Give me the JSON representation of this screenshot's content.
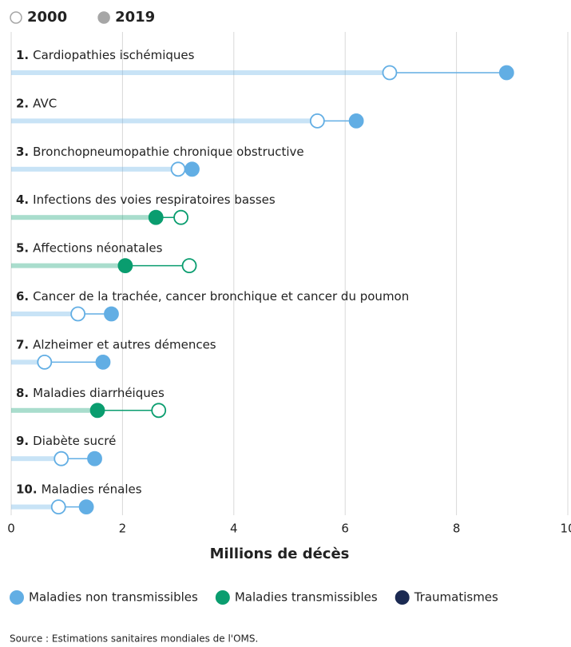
{
  "chart_data": {
    "type": "dumbbell",
    "ranks": [
      "1.",
      "2.",
      "3.",
      "4.",
      "5.",
      "6.",
      "7.",
      "8.",
      "9.",
      "10."
    ],
    "categories": [
      "Cardiopathies ischémiques",
      "AVC",
      "Bronchopneumopathie chronique obstructive",
      "Infections des voies respiratoires basses",
      "Affections néonatales",
      "Cancer de la trachée, cancer bronchique et cancer du poumon",
      "Alzheimer et autres démences",
      "Maladies diarrhéiques",
      "Diabète sucré",
      "Maladies rénales"
    ],
    "category_groups": [
      0,
      0,
      0,
      1,
      1,
      0,
      0,
      1,
      0,
      0
    ],
    "groups": [
      {
        "name": "Maladies non transmissibles",
        "color": "#62aee4"
      },
      {
        "name": "Maladies transmissibles",
        "color": "#0a9d6f"
      },
      {
        "name": "Traumatismes",
        "color": "#1b2a52"
      }
    ],
    "series": [
      {
        "name": "2000",
        "color": "#a6a6a6",
        "marker": "hollow",
        "values": [
          6.8,
          5.5,
          3.0,
          3.05,
          3.2,
          1.2,
          0.6,
          2.65,
          0.9,
          0.85
        ]
      },
      {
        "name": "2019",
        "color": "#a6a6a6",
        "marker": "filled",
        "values": [
          8.9,
          6.2,
          3.25,
          2.6,
          2.05,
          1.8,
          1.65,
          1.55,
          1.5,
          1.35
        ]
      }
    ],
    "xlim": [
      0,
      10
    ],
    "xticks": [
      0,
      2,
      4,
      6,
      8,
      10
    ],
    "grid": true,
    "x_label": "Millions de décès",
    "source": "Source : Estimations sanitaires mondiales de l'OMS."
  }
}
